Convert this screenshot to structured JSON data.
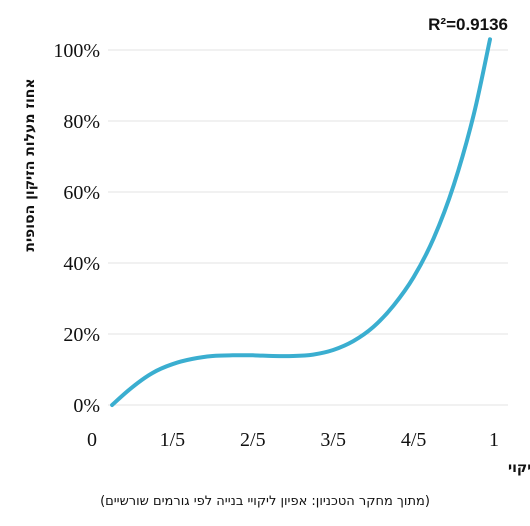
{
  "chart_data": {
    "type": "line",
    "r_squared_label": "R²=0.9136",
    "xlabel": "מיקום בשרשרת אירועי הליקוי",
    "ylabel": "אחוז מעלות הזיקון הסופית",
    "caption": "(מתוך מחקר הטכניון: אפיון ליקויי בנייה לפי גורמים שורשיים)",
    "x_ticks": [
      {
        "value": 0,
        "label": "0"
      },
      {
        "value": 0.2,
        "label": "1/5"
      },
      {
        "value": 0.4,
        "label": "2/5"
      },
      {
        "value": 0.6,
        "label": "3/5"
      },
      {
        "value": 0.8,
        "label": "4/5"
      },
      {
        "value": 1.0,
        "label": "1"
      }
    ],
    "y_ticks": [
      {
        "value": 0,
        "label": "0%"
      },
      {
        "value": 20,
        "label": "20%"
      },
      {
        "value": 40,
        "label": "40%"
      },
      {
        "value": 60,
        "label": "60%"
      },
      {
        "value": 80,
        "label": "80%"
      },
      {
        "value": 100,
        "label": "100%"
      }
    ],
    "xlim": [
      0,
      1
    ],
    "ylim": [
      0,
      110
    ],
    "grid": "horizontal",
    "series": [
      {
        "color": "#3aaed0",
        "points": [
          [
            0.05,
            0
          ],
          [
            0.1,
            5
          ],
          [
            0.15,
            9
          ],
          [
            0.2,
            11.5
          ],
          [
            0.25,
            13
          ],
          [
            0.3,
            13.8
          ],
          [
            0.35,
            14
          ],
          [
            0.4,
            14
          ],
          [
            0.45,
            13.8
          ],
          [
            0.5,
            13.8
          ],
          [
            0.55,
            14.2
          ],
          [
            0.6,
            15.5
          ],
          [
            0.65,
            18
          ],
          [
            0.7,
            22
          ],
          [
            0.75,
            28
          ],
          [
            0.8,
            36
          ],
          [
            0.85,
            47
          ],
          [
            0.9,
            62
          ],
          [
            0.95,
            82
          ],
          [
            0.99,
            103
          ]
        ]
      }
    ]
  }
}
